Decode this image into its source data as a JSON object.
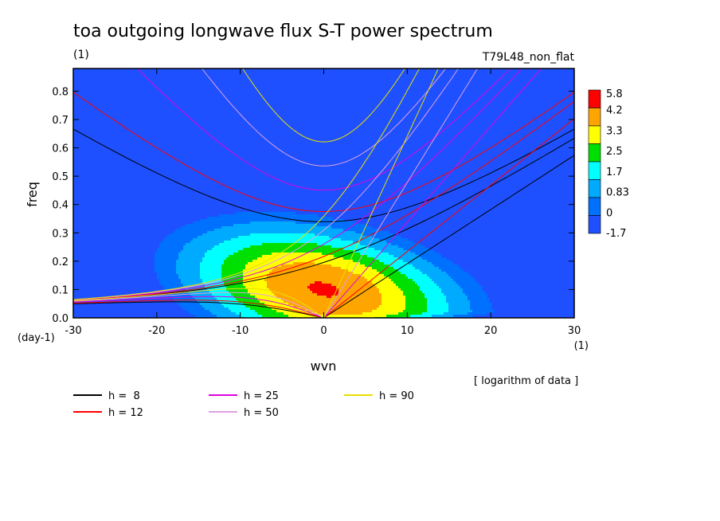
{
  "chart_data": {
    "type": "heatmap",
    "title": "toa outgoing longwave flux S-T power spectrum",
    "subtitle_left": "(1)",
    "subtitle_right": "T79L48_non_flat",
    "xlabel": "wvn",
    "ylabel": "freq",
    "x_unit": "(1)",
    "y_unit": "(day-1)",
    "xlim": [
      -30,
      30
    ],
    "ylim": [
      0,
      0.88
    ],
    "x_ticks": [
      -30,
      -20,
      -10,
      0,
      10,
      20,
      30
    ],
    "y_ticks": [
      0.0,
      0.1,
      0.2,
      0.3,
      0.4,
      0.5,
      0.6,
      0.7,
      0.8
    ],
    "x_tick_labels": [
      "-30",
      "-20",
      "-10",
      "0",
      "10",
      "20",
      "30"
    ],
    "y_tick_labels": [
      "0.0",
      "0.1",
      "0.2",
      "0.3",
      "0.4",
      "0.5",
      "0.6",
      "0.7",
      "0.8"
    ],
    "colorbar": {
      "labels": [
        "5.8",
        "4.2",
        "3.3",
        "2.5",
        "1.7",
        "0.83",
        "0",
        "-1.7"
      ],
      "colors": [
        "#ff0000",
        "#ffa500",
        "#ffff00",
        "#00e000",
        "#00ffff",
        "#00aaff",
        "#0070ff",
        "#1e50ff"
      ]
    },
    "note": "[ logarithm of data ]",
    "levels_approx": [
      {
        "level": 5.8,
        "color": "#ff0000"
      },
      {
        "level": 4.2,
        "color": "#ffa500"
      },
      {
        "level": 3.3,
        "color": "#ffff00"
      },
      {
        "level": 2.5,
        "color": "#00e000"
      },
      {
        "level": 1.7,
        "color": "#00ffff"
      },
      {
        "level": 0.83,
        "color": "#00aaff"
      },
      {
        "level": 0,
        "color": "#0070ff"
      }
    ],
    "dispersion_legend": [
      {
        "label": "h =  8",
        "color": "#000000",
        "h": 8
      },
      {
        "label": "h = 12",
        "color": "#ff0000",
        "h": 12
      },
      {
        "label": "h = 25",
        "color": "#e000e0",
        "h": 25
      },
      {
        "label": "h = 50",
        "color": "#e0a0e0",
        "h": 50
      },
      {
        "label": "h = 90",
        "color": "#e8e000",
        "h": 90
      }
    ]
  }
}
